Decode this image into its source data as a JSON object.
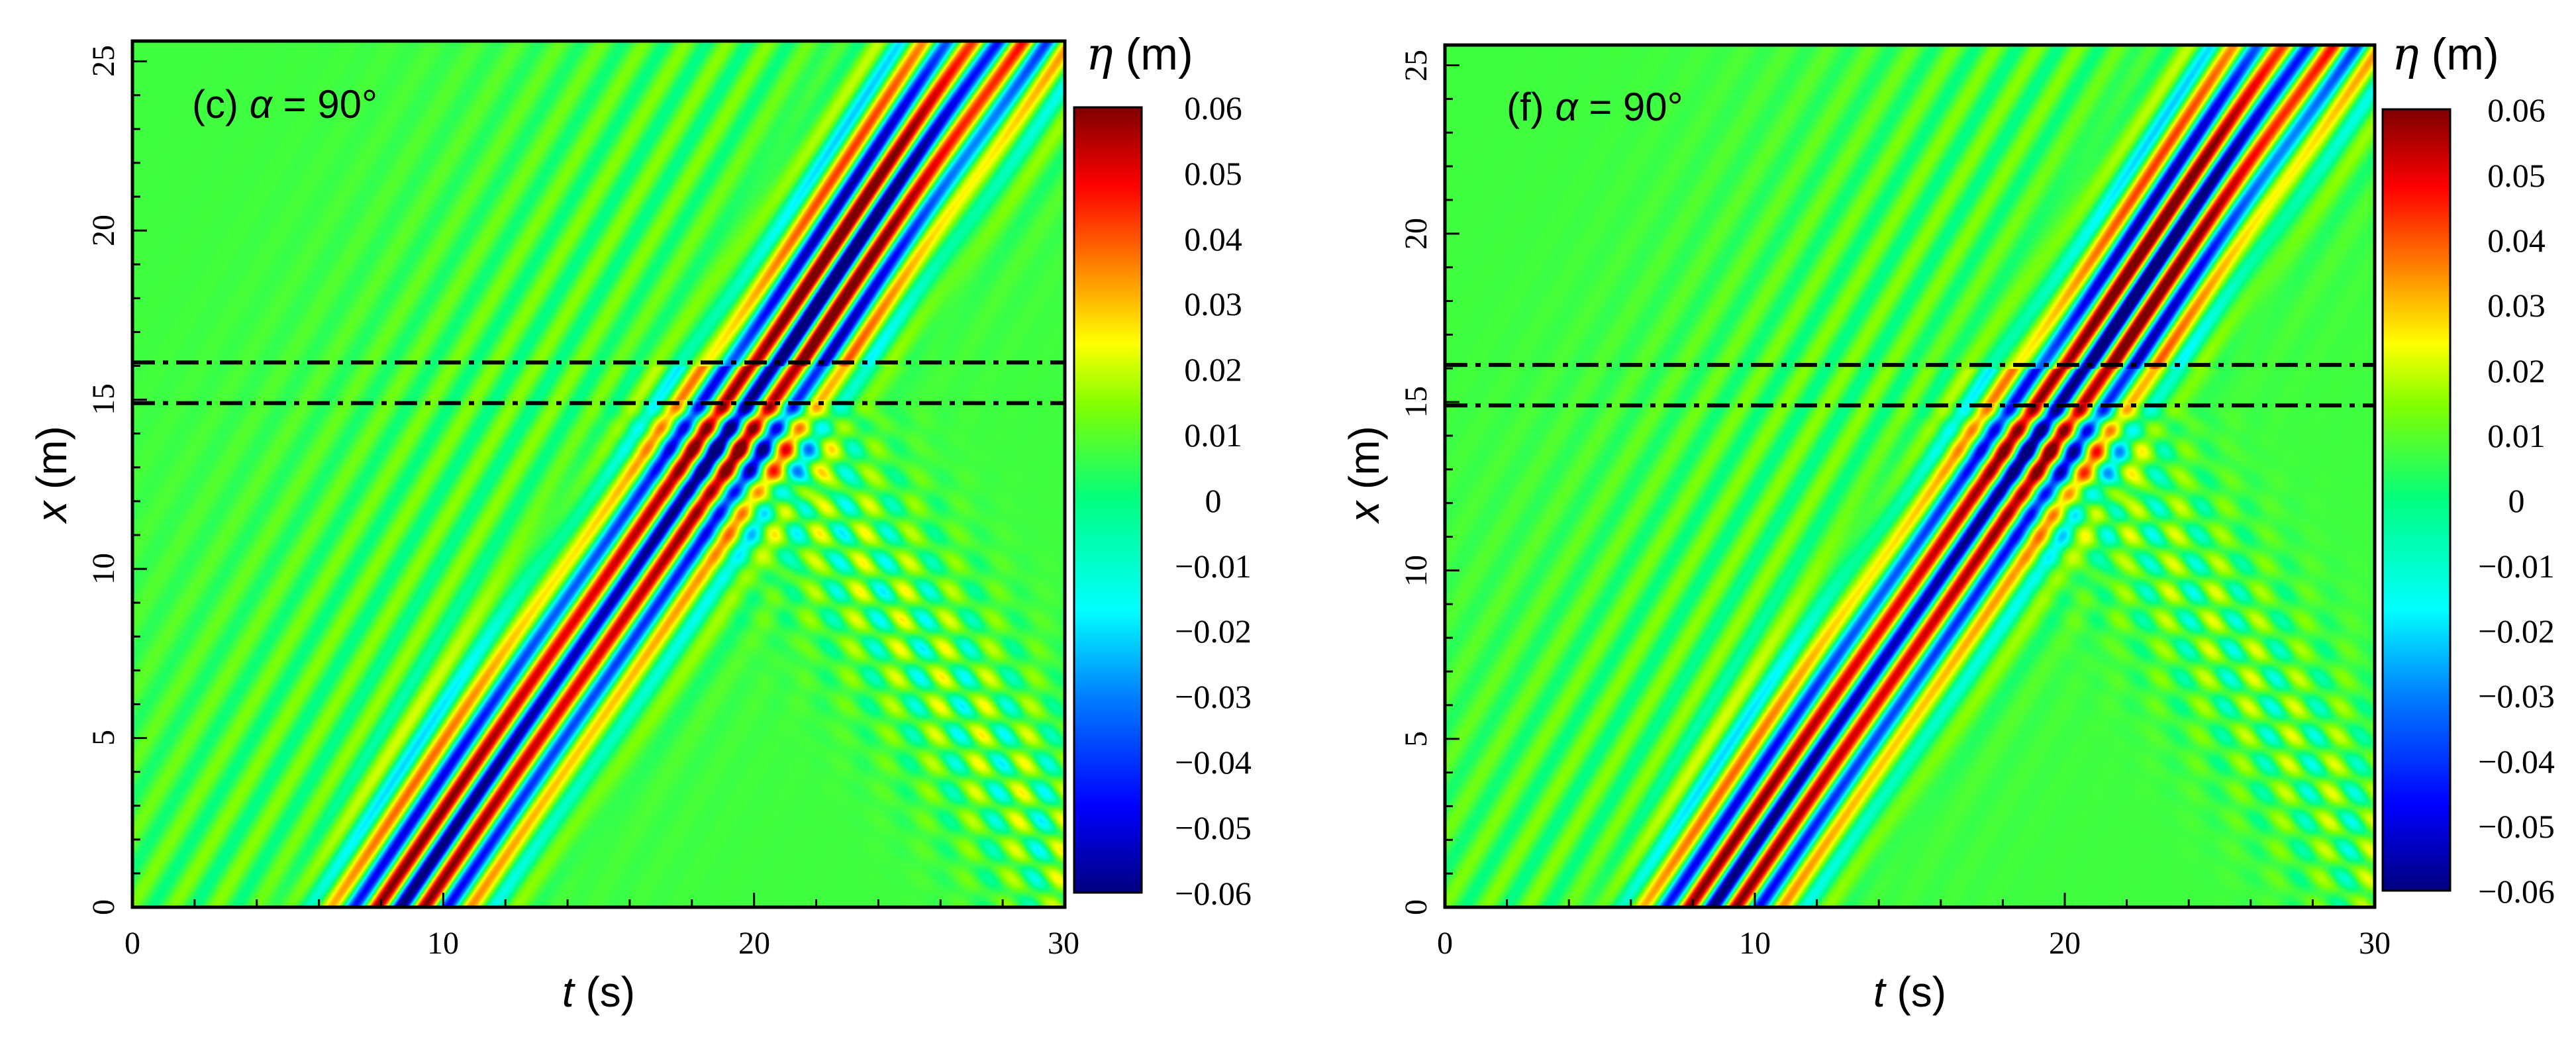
{
  "chart_data": [
    {
      "type": "heatmap",
      "panel_label": "(c)",
      "angle_symbol": "α",
      "angle_value": "= 90°",
      "xlabel_symbol": "t",
      "xlabel_unit": "(s)",
      "ylabel_symbol": "x",
      "ylabel_unit": "(m)",
      "xlim": [
        0,
        30
      ],
      "ylim": [
        0,
        25.6
      ],
      "xticks": [
        10,
        20,
        30
      ],
      "yticks": [
        0,
        5,
        10,
        15,
        20,
        25
      ],
      "reference_lines_y": [
        14.9,
        16.1
      ],
      "wave_packet": {
        "speed": 1.33,
        "start_t": 8.6,
        "amplitude": 0.06,
        "reflect_at": 15.0
      },
      "colorbar": {
        "title_symbol": "η",
        "title_unit": "(m)",
        "min": -0.06,
        "max": 0.06,
        "ticks": [
          "0.06",
          "0.05",
          "0.04",
          "0.03",
          "0.02",
          "0.01",
          "0",
          "−0.01",
          "−0.02",
          "−0.03",
          "−0.04",
          "−0.05",
          "−0.06"
        ]
      }
    },
    {
      "type": "heatmap",
      "panel_label": "(f)",
      "angle_symbol": "α",
      "angle_value": "= 90°",
      "xlabel_symbol": "t",
      "xlabel_unit": "(s)",
      "ylabel_symbol": "x",
      "ylabel_unit": "(m)",
      "xlim": [
        0,
        30
      ],
      "ylim": [
        0,
        25.6
      ],
      "xticks": [
        10,
        20,
        30
      ],
      "yticks": [
        0,
        5,
        10,
        15,
        20,
        25
      ],
      "reference_lines_y": [
        14.9,
        16.1
      ],
      "wave_packet": {
        "speed": 1.33,
        "start_t": 8.6,
        "amplitude": 0.06,
        "reflect_at": 15.0
      },
      "colorbar": {
        "title_symbol": "η",
        "title_unit": "(m)",
        "min": -0.06,
        "max": 0.06,
        "ticks": [
          "0.06",
          "0.05",
          "0.04",
          "0.03",
          "0.02",
          "0.01",
          "0",
          "−0.01",
          "−0.02",
          "−0.03",
          "−0.04",
          "−0.05",
          "−0.06"
        ]
      }
    }
  ],
  "colors": {
    "jet": [
      "#00007f",
      "#0000ff",
      "#007fff",
      "#00ffff",
      "#00ff80",
      "#80ff00",
      "#ffff00",
      "#ff7f00",
      "#ff0000",
      "#7f0000"
    ],
    "background": "#ffffff",
    "axis": "#000000"
  }
}
